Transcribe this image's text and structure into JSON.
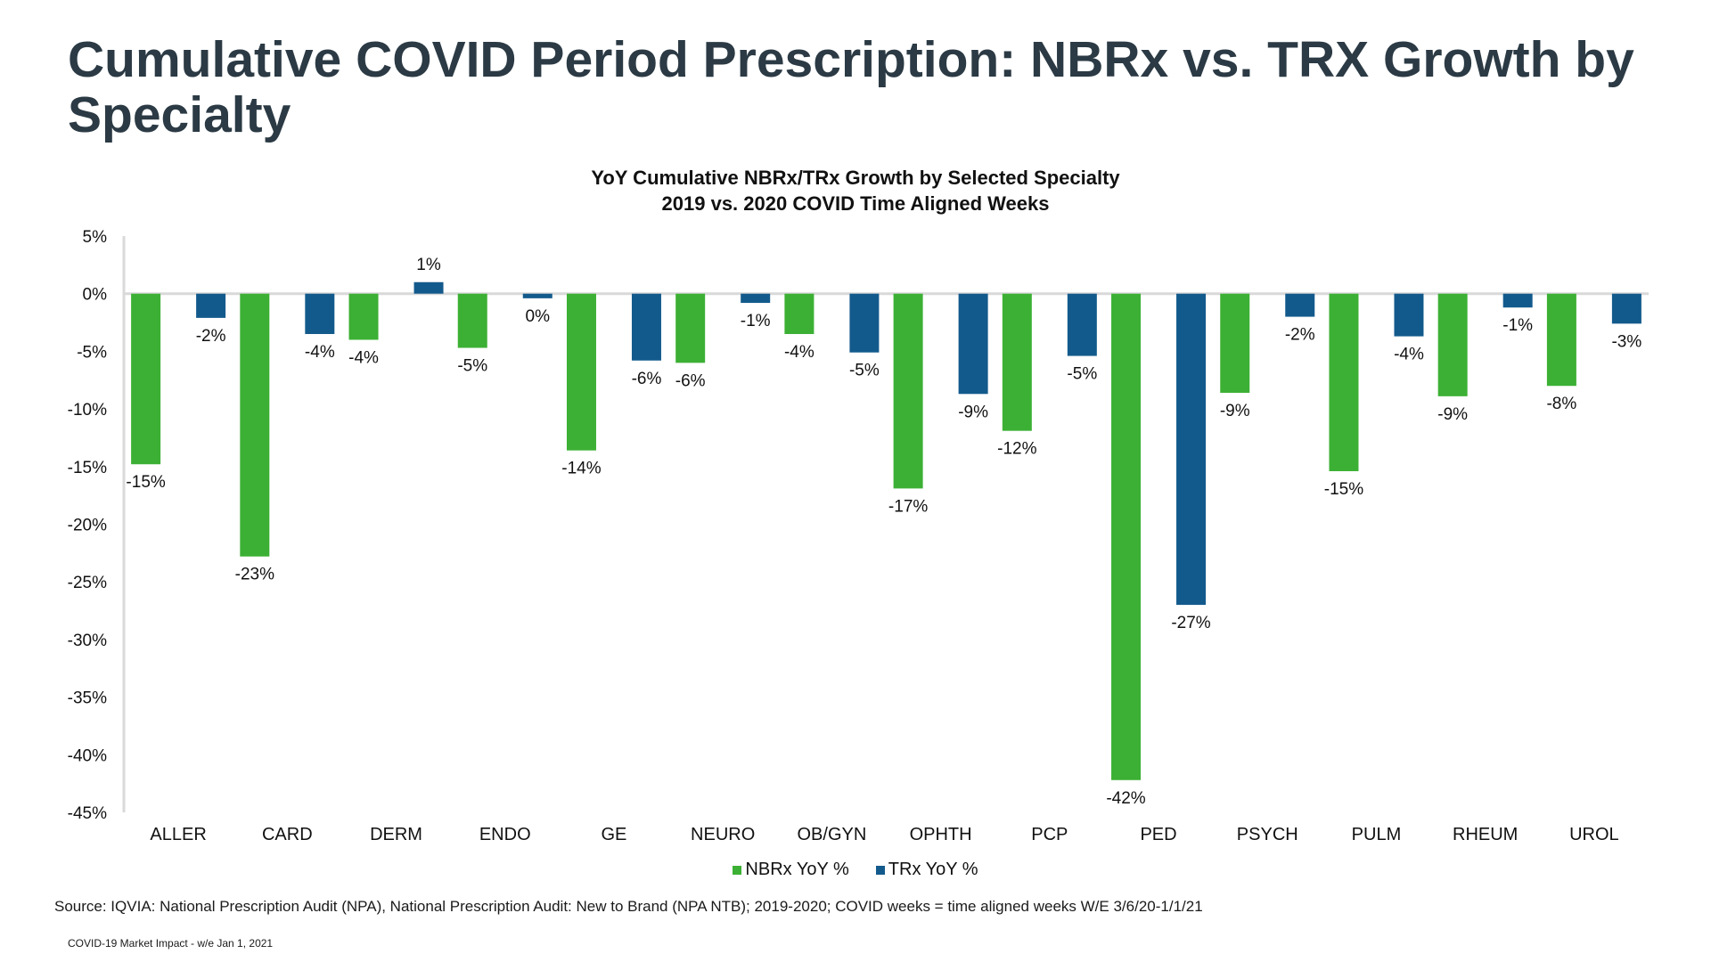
{
  "slide": {
    "title": "Cumulative COVID Period Prescription: NBRx vs. TRX Growth by Specialty",
    "source": "Source: IQVIA: National Prescription Audit (NPA), National Prescription Audit: New to Brand (NPA NTB); 2019-2020; COVID weeks = time aligned weeks W/E 3/6/20-1/1/21",
    "footer": "COVID-19 Market Impact - w/e Jan 1, 2021"
  },
  "chart_data": {
    "type": "bar",
    "title": "YoY Cumulative NBRx/TRx Growth by Selected Specialty",
    "subtitle": "2019 vs. 2020 COVID Time Aligned Weeks",
    "categories": [
      "ALLER",
      "CARD",
      "DERM",
      "ENDO",
      "GE",
      "NEURO",
      "OB/GYN",
      "OPHTH",
      "PCP",
      "PED",
      "PSYCH",
      "PULM",
      "RHEUM",
      "UROL"
    ],
    "series": [
      {
        "name": "NBRx YoY %",
        "color": "#3cb034",
        "values": [
          -14.8,
          -22.8,
          -4.0,
          -4.7,
          -13.6,
          -6.0,
          -3.5,
          -16.9,
          -11.9,
          -42.2,
          -8.6,
          -15.4,
          -8.9,
          -8.0
        ],
        "labels": [
          "-15%",
          "-23%",
          "-4%",
          "-5%",
          "-14%",
          "-6%",
          "-4%",
          "-17%",
          "-12%",
          "-42%",
          "-9%",
          "-15%",
          "-9%",
          "-8%"
        ]
      },
      {
        "name": "TRx YoY %",
        "color": "#135a8c",
        "values": [
          -2.1,
          -3.5,
          1.0,
          -0.4,
          -5.8,
          -0.8,
          -5.1,
          -8.7,
          -5.4,
          -27.0,
          -2.0,
          -3.7,
          -1.2,
          -2.6
        ],
        "labels": [
          "-2%",
          "-4%",
          "1%",
          "0%",
          "-6%",
          "-1%",
          "-5%",
          "-9%",
          "-5%",
          "-27%",
          "-2%",
          "-4%",
          "-1%",
          "-3%"
        ]
      }
    ],
    "ylim": [
      -45,
      5
    ],
    "yticks": [
      5,
      0,
      -5,
      -10,
      -15,
      -20,
      -25,
      -30,
      -35,
      -40,
      -45
    ],
    "ytick_labels": [
      "5%",
      "0%",
      "-5%",
      "-10%",
      "-15%",
      "-20%",
      "-25%",
      "-30%",
      "-35%",
      "-40%",
      "-45%"
    ],
    "grid": false,
    "legend_position": "bottom"
  }
}
